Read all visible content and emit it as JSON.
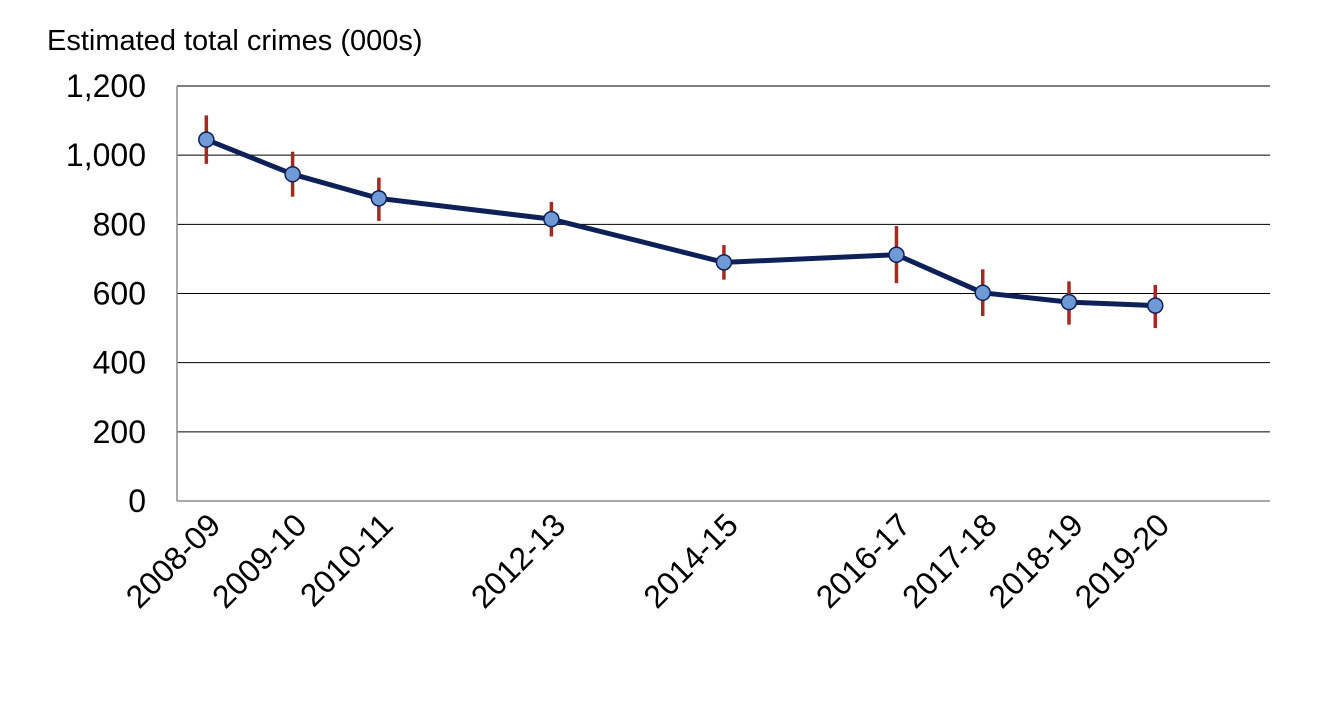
{
  "chart_data": {
    "type": "line",
    "title": "",
    "xlabel": "",
    "ylabel": "Estimated total crimes (000s)",
    "ylim": [
      0,
      1200
    ],
    "yticks": [
      0,
      200,
      400,
      600,
      800,
      1000,
      1200
    ],
    "ytick_labels": [
      "0",
      "200",
      "400",
      "600",
      "800",
      "1,000",
      "1,200"
    ],
    "grid": true,
    "legend": "none",
    "categories": [
      "2008-09",
      "2009-10",
      "2010-11",
      "2012-13",
      "2014-15",
      "2016-17",
      "2017-18",
      "2018-19",
      "2019-20"
    ],
    "x_years": [
      2008,
      2009,
      2010,
      2012,
      2014,
      2016,
      2017,
      2018,
      2019
    ],
    "series": [
      {
        "values": [
          1045,
          945,
          875,
          815,
          690,
          712,
          602,
          575,
          565
        ],
        "error_low": [
          975,
          880,
          810,
          765,
          640,
          630,
          535,
          510,
          500
        ],
        "error_high": [
          1115,
          1010,
          935,
          865,
          740,
          795,
          670,
          635,
          625
        ]
      }
    ],
    "colors": {
      "line": "#0d2057",
      "marker_fill": "#6f9ad6",
      "marker_stroke": "#0d2057",
      "error_bar": "#a32a20",
      "grid": "#000000",
      "axis": "#8c8c8c"
    }
  }
}
